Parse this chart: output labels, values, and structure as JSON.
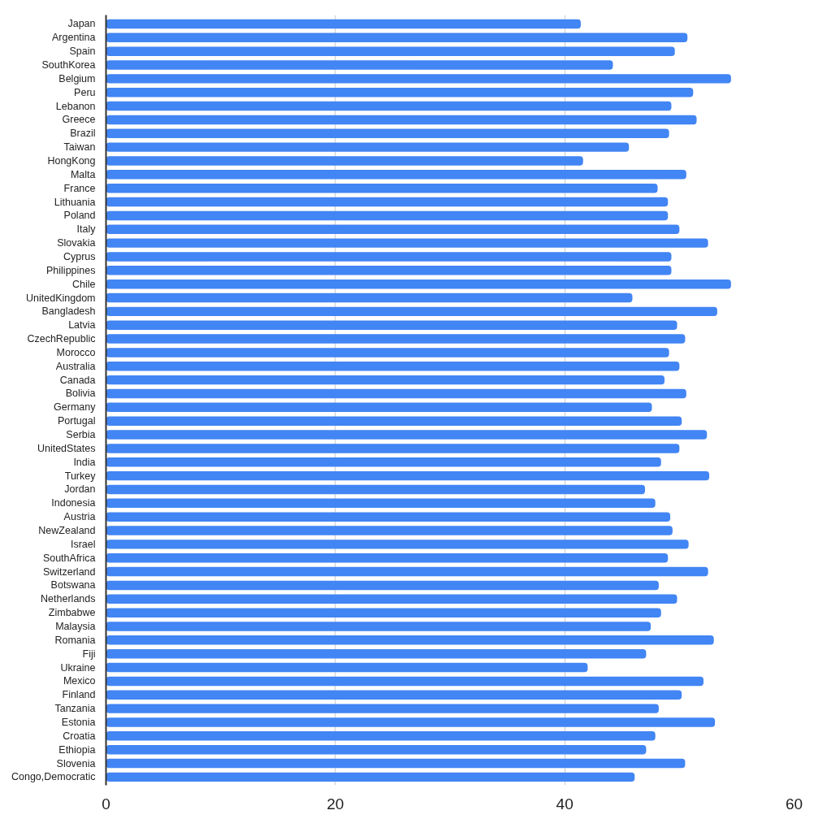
{
  "chart_data": {
    "type": "bar",
    "orientation": "horizontal",
    "categories": [
      "Japan",
      "Argentina",
      "Spain",
      "SouthKorea",
      "Belgium",
      "Peru",
      "Lebanon",
      "Greece",
      "Brazil",
      "Taiwan",
      "HongKong",
      "Malta",
      "France",
      "Lithuania",
      "Poland",
      "Italy",
      "Slovakia",
      "Cyprus",
      "Philippines",
      "Chile",
      "UnitedKingdom",
      "Bangladesh",
      "Latvia",
      "CzechRepublic",
      "Morocco",
      "Australia",
      "Canada",
      "Bolivia",
      "Germany",
      "Portugal",
      "Serbia",
      "UnitedStates",
      "India",
      "Turkey",
      "Jordan",
      "Indonesia",
      "Austria",
      "NewZealand",
      "Israel",
      "SouthAfrica",
      "Switzerland",
      "Botswana",
      "Netherlands",
      "Zimbabwe",
      "Malaysia",
      "Romania",
      "Fiji",
      "Ukraine",
      "Mexico",
      "Finland",
      "Tanzania",
      "Estonia",
      "Croatia",
      "Ethiopia",
      "Slovenia",
      "Congo,Democratic"
    ],
    "values": [
      41.4,
      50.7,
      49.6,
      44.2,
      54.5,
      51.2,
      49.3,
      51.5,
      49.1,
      45.6,
      41.6,
      50.6,
      48.1,
      49.0,
      49.0,
      50.0,
      52.5,
      49.3,
      49.3,
      54.5,
      45.9,
      53.3,
      49.8,
      50.5,
      49.1,
      50.0,
      48.7,
      50.6,
      47.6,
      50.2,
      52.4,
      50.0,
      48.4,
      52.6,
      47.0,
      47.9,
      49.2,
      49.4,
      50.8,
      49.0,
      52.5,
      48.2,
      49.8,
      48.4,
      47.5,
      53.0,
      47.1,
      42.0,
      52.1,
      50.2,
      48.2,
      53.1,
      47.9,
      47.1,
      50.5,
      46.1
    ],
    "color": "#4285f4",
    "xlim": [
      0,
      60
    ],
    "xticks": [
      0,
      20,
      40,
      60
    ],
    "grid": "x"
  }
}
